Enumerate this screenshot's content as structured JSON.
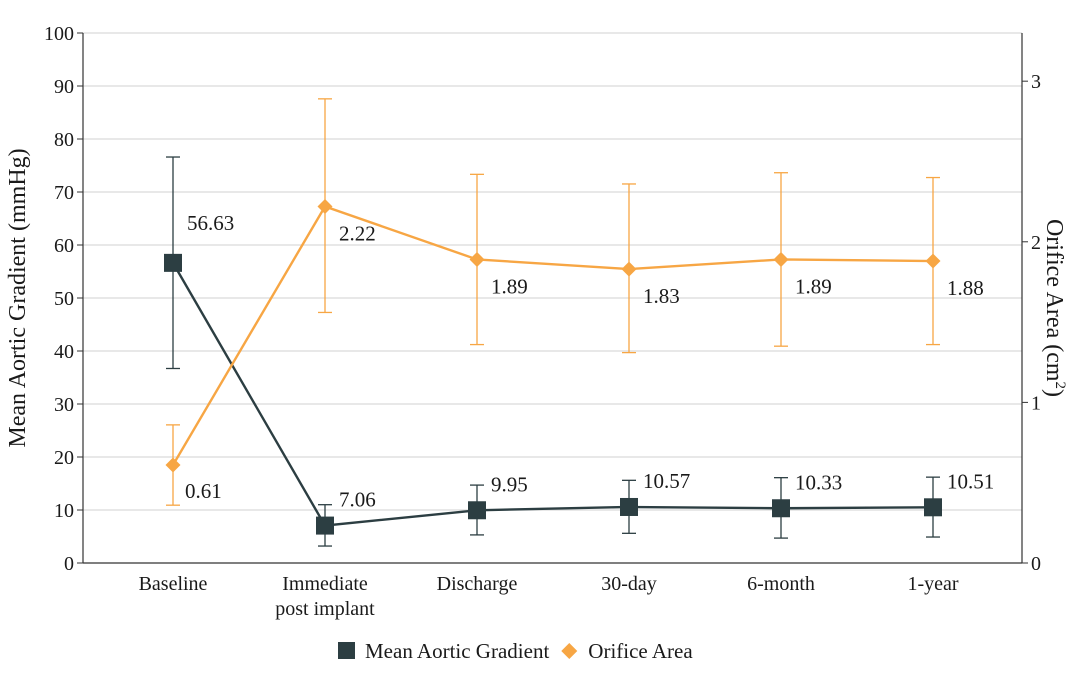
{
  "chart_data": {
    "type": "line",
    "title": "",
    "categories": [
      [
        "Baseline"
      ],
      [
        "Immediate",
        "post implant"
      ],
      [
        "Discharge"
      ],
      [
        "30-day"
      ],
      [
        "6-month"
      ],
      [
        "1-year"
      ]
    ],
    "left_axis": {
      "label": "Mean Aortic Gradient (mmHg)",
      "ylim": [
        0,
        100
      ],
      "ticks": [
        "0",
        "10",
        "20",
        "30",
        "40",
        "50",
        "60",
        "70",
        "80",
        "90",
        "100"
      ]
    },
    "right_axis": {
      "label_main": "Orifice Area (cm",
      "label_sup": "2",
      "label_close": ")",
      "ylim": [
        0,
        3.3
      ],
      "ticks": [
        "0",
        "1",
        "2",
        "3"
      ]
    },
    "grid": true,
    "legend_position": "bottom",
    "series": [
      {
        "name": "Mean Aortic Gradient",
        "axis": "left",
        "color": "#2c3e42",
        "marker": "square",
        "values": [
          56.63,
          7.06,
          9.95,
          10.57,
          10.33,
          10.51
        ],
        "labels": [
          "56.63",
          "7.06",
          "9.95",
          "10.57",
          "10.33",
          "10.51"
        ],
        "error_low": [
          36.7,
          3.2,
          5.3,
          5.6,
          4.7,
          4.9
        ],
        "error_high": [
          76.6,
          11.0,
          14.7,
          15.6,
          16.1,
          16.2
        ]
      },
      {
        "name": "Orifice Area",
        "axis": "right",
        "color": "#f7a644",
        "marker": "diamond",
        "values": [
          0.61,
          2.22,
          1.89,
          1.83,
          1.89,
          1.88
        ],
        "labels": [
          "0.61",
          "2.22",
          "1.89",
          "1.83",
          "1.89",
          "1.88"
        ],
        "error_low": [
          0.36,
          1.56,
          1.36,
          1.31,
          1.35,
          1.36
        ],
        "error_high": [
          0.86,
          2.89,
          2.42,
          2.36,
          2.43,
          2.4
        ]
      }
    ]
  }
}
